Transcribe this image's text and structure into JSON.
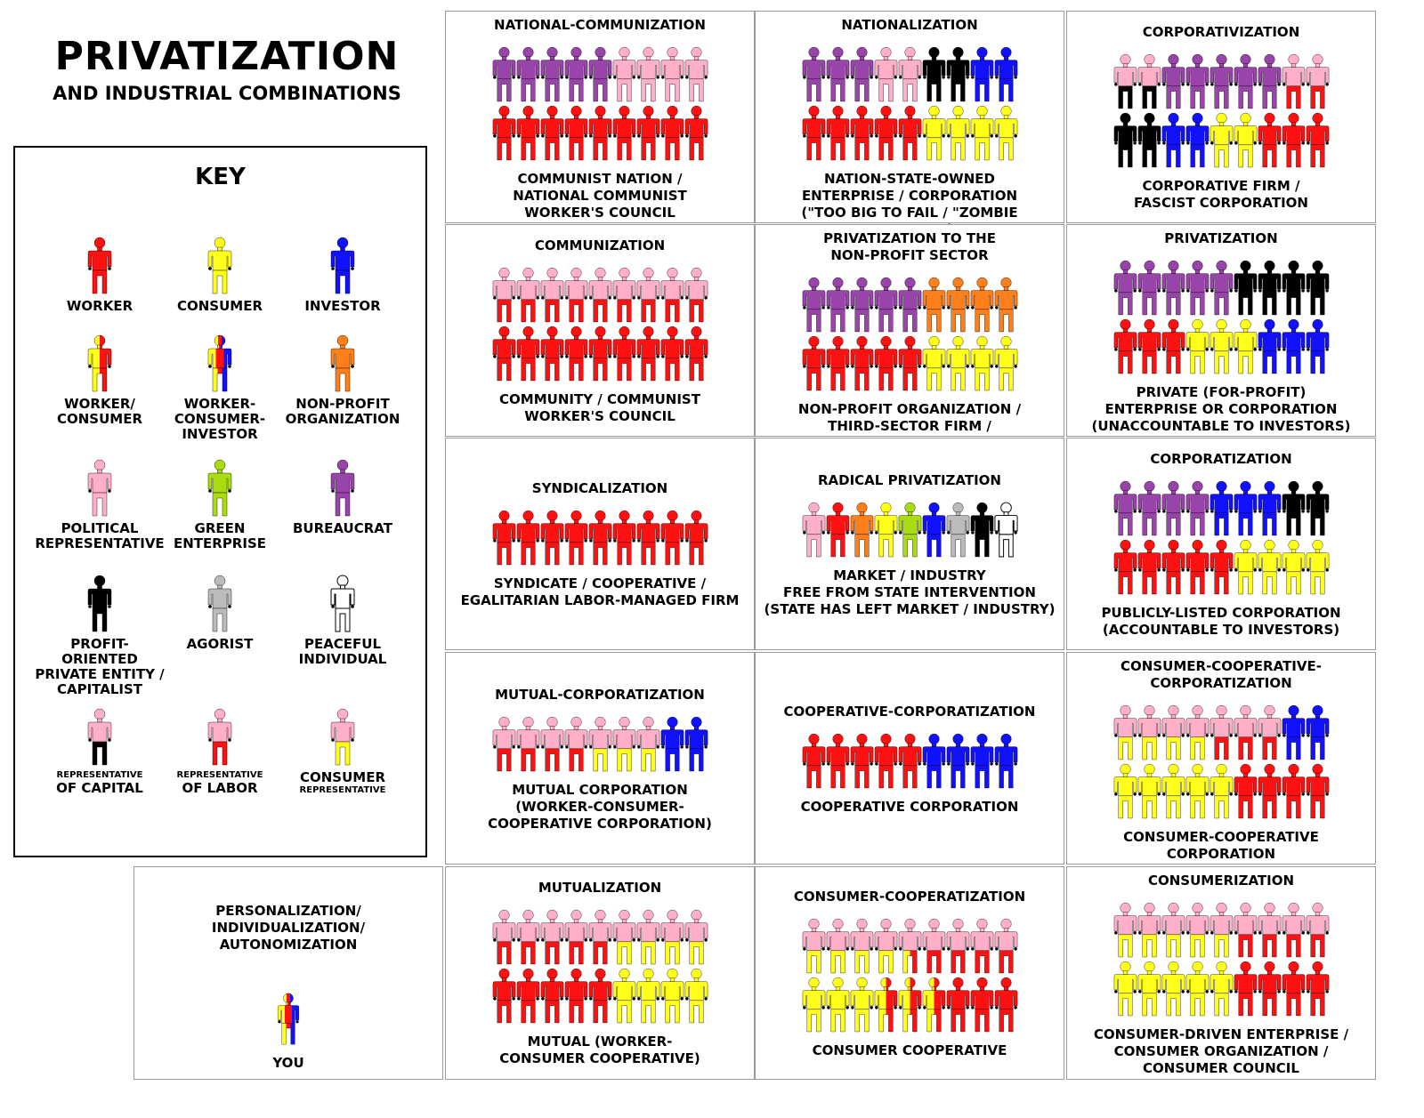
{
  "header": {
    "title": "PRIVATIZATION",
    "subtitle": "AND INDUSTRIAL COMBINATIONS"
  },
  "colors": {
    "worker": "#ff1111",
    "consumer": "#ffff1a",
    "investor": "#1111ff",
    "nonprofit": "#ff7f1a",
    "political": "#ffb0c8",
    "green": "#aadd11",
    "bureaucrat": "#9944aa",
    "capitalist": "#000000",
    "agorist": "#bbbbbb",
    "peaceful": "#ffffff"
  },
  "key": {
    "title": "KEY",
    "items": [
      {
        "name": "worker",
        "label": "WORKER",
        "icon": "worker"
      },
      {
        "name": "consumer",
        "label": "CONSUMER",
        "icon": "consumer"
      },
      {
        "name": "investor",
        "label": "INVESTOR",
        "icon": "investor"
      },
      {
        "name": "worker-consumer",
        "label": "WORKER/\nCONSUMER",
        "icon": "worker-consumer"
      },
      {
        "name": "worker-consumer-investor",
        "label": "WORKER-\nCONSUMER-\nINVESTOR",
        "icon": "worker-consumer-investor"
      },
      {
        "name": "non-profit-organization",
        "label": "NON-PROFIT\nORGANIZATION",
        "icon": "nonprofit"
      },
      {
        "name": "political-representative",
        "label": "POLITICAL\nREPRESENTATIVE",
        "icon": "political"
      },
      {
        "name": "green-enterprise",
        "label": "GREEN\nENTERPRISE",
        "icon": "green"
      },
      {
        "name": "bureaucrat",
        "label": "BUREAUCRAT",
        "icon": "bureaucrat"
      },
      {
        "name": "capitalist",
        "label": "PROFIT-ORIENTED\nPRIVATE ENTITY /\nCAPITALIST",
        "icon": "capitalist"
      },
      {
        "name": "agorist",
        "label": "AGORIST",
        "icon": "agorist"
      },
      {
        "name": "peaceful-individual",
        "label": "PEACEFUL\nINDIVIDUAL",
        "icon": "peaceful"
      },
      {
        "name": "representative-of-capital",
        "label_small": "REPRESENTATIVE",
        "label": "OF CAPITAL",
        "icon": "rep-capital"
      },
      {
        "name": "representative-of-labor",
        "label_small": "REPRESENTATIVE",
        "label": "OF LABOR",
        "icon": "rep-labor"
      },
      {
        "name": "consumer-representative",
        "label": "CONSUMER",
        "label_small": "REPRESENTATIVE",
        "icon": "rep-consumer"
      }
    ]
  },
  "panels": [
    {
      "name": "national-communization",
      "title": "NATIONAL-COMMUNIZATION",
      "caption": "COMMUNIST NATION /\nNATIONAL COMMUNIST\nWORKER'S COUNCIL",
      "rows": [
        [
          "bureaucrat",
          "bureaucrat",
          "bureaucrat",
          "bureaucrat",
          "bureaucrat",
          "political",
          "political",
          "political",
          "political"
        ],
        [
          "worker",
          "worker",
          "worker",
          "worker",
          "worker",
          "worker",
          "worker",
          "worker",
          "worker"
        ]
      ]
    },
    {
      "name": "nationalization",
      "title": "NATIONALIZATION",
      "caption": "NATION-STATE-OWNED\nENTERPRISE / CORPORATION\n(\"TOO BIG TO FAIL / \"ZOMBIE COMPANY\")",
      "rows": [
        [
          "bureaucrat",
          "bureaucrat",
          "bureaucrat",
          "political",
          "political",
          "capitalist",
          "capitalist",
          "investor",
          "investor"
        ],
        [
          "worker",
          "worker",
          "worker",
          "worker",
          "worker",
          "consumer",
          "consumer",
          "consumer",
          "consumer"
        ]
      ]
    },
    {
      "name": "corporativization",
      "title": "CORPORATIVIZATION",
      "caption": "CORPORATIVE FIRM /\nFASCIST CORPORATION",
      "rows": [
        [
          "rep-capital",
          "rep-capital",
          "bureaucrat",
          "bureaucrat",
          "bureaucrat",
          "bureaucrat",
          "bureaucrat",
          "rep-labor",
          "rep-labor"
        ],
        [
          "capitalist",
          "capitalist",
          "investor",
          "investor",
          "consumer",
          "consumer",
          "worker",
          "worker",
          "worker"
        ]
      ]
    },
    {
      "name": "communization",
      "title": "COMMUNIZATION",
      "caption": "COMMUNITY / COMMUNIST\nWORKER'S COUNCIL",
      "rows": [
        [
          "rep-labor",
          "rep-labor",
          "rep-labor",
          "rep-labor",
          "rep-labor",
          "rep-labor",
          "rep-labor",
          "rep-labor",
          "rep-labor"
        ],
        [
          "worker",
          "worker",
          "worker",
          "worker",
          "worker",
          "worker",
          "worker",
          "worker",
          "worker"
        ]
      ]
    },
    {
      "name": "privatization-non-profit",
      "title": "PRIVATIZATION TO THE\nNON-PROFIT SECTOR",
      "caption": "NON-PROFIT ORGANIZATION /\nTHIRD-SECTOR FIRM /\nVOLUNTARY COOPERATIVE",
      "rows": [
        [
          "bureaucrat",
          "bureaucrat",
          "bureaucrat",
          "bureaucrat",
          "bureaucrat",
          "nonprofit",
          "nonprofit",
          "nonprofit",
          "nonprofit"
        ],
        [
          "worker",
          "worker",
          "worker",
          "worker",
          "worker",
          "consumer",
          "consumer",
          "consumer",
          "consumer"
        ]
      ]
    },
    {
      "name": "privatization",
      "title": "PRIVATIZATION",
      "caption": "PRIVATE (FOR-PROFIT)\nENTERPRISE OR CORPORATION\n(UNACCOUNTABLE TO INVESTORS)",
      "rows": [
        [
          "bureaucrat",
          "bureaucrat",
          "bureaucrat",
          "bureaucrat",
          "bureaucrat",
          "capitalist",
          "capitalist",
          "capitalist",
          "capitalist"
        ],
        [
          "worker",
          "worker",
          "worker",
          "consumer",
          "consumer",
          "consumer",
          "investor",
          "investor",
          "investor"
        ]
      ]
    },
    {
      "name": "syndicalization",
      "title": "SYNDICALIZATION",
      "caption": "SYNDICATE / COOPERATIVE /\nEGALITARIAN LABOR-MANAGED FIRM",
      "rows": [
        [
          "worker",
          "worker",
          "worker",
          "worker",
          "worker",
          "worker",
          "worker",
          "worker",
          "worker"
        ]
      ]
    },
    {
      "name": "radical-privatization",
      "title": "RADICAL PRIVATIZATION",
      "caption": "MARKET / INDUSTRY\nFREE FROM STATE INTERVENTION\n(STATE HAS LEFT MARKET / INDUSTRY)",
      "rows": [
        [
          "political",
          "worker",
          "nonprofit",
          "consumer",
          "green",
          "investor",
          "agorist",
          "capitalist",
          "peaceful"
        ]
      ]
    },
    {
      "name": "corporatization",
      "title": "CORPORATIZATION",
      "caption": "PUBLICLY-LISTED CORPORATION\n(ACCOUNTABLE TO INVESTORS)",
      "rows": [
        [
          "bureaucrat",
          "bureaucrat",
          "bureaucrat",
          "bureaucrat",
          "investor",
          "investor",
          "investor",
          "capitalist",
          "capitalist"
        ],
        [
          "worker",
          "worker",
          "worker",
          "worker",
          "worker",
          "consumer",
          "consumer",
          "consumer",
          "consumer"
        ]
      ]
    },
    {
      "name": "mutual-corporatization",
      "title": "MUTUAL-CORPORATIZATION",
      "caption": "MUTUAL CORPORATION\n(WORKER-CONSUMER-\nCOOPERATIVE CORPORATION)",
      "rows": [
        [
          "rep-labor",
          "rep-labor",
          "rep-labor",
          "rep-labor",
          "rep-consumer",
          "rep-consumer",
          "rep-consumer",
          "investor",
          "investor"
        ]
      ]
    },
    {
      "name": "cooperative-corporatization",
      "title": "COOPERATIVE-CORPORATIZATION",
      "caption": "COOPERATIVE CORPORATION",
      "rows": [
        [
          "worker",
          "worker",
          "worker",
          "worker",
          "worker",
          "investor",
          "investor",
          "investor",
          "investor"
        ]
      ]
    },
    {
      "name": "consumer-cooperative-corporatization",
      "title": "CONSUMER-COOPERATIVE-\nCORPORATIZATION",
      "caption": "CONSUMER-COOPERATIVE\nCORPORATION",
      "rows": [
        [
          "rep-consumer",
          "rep-consumer",
          "rep-consumer",
          "rep-consumer",
          "rep-labor",
          "rep-labor",
          "rep-labor",
          "investor",
          "investor"
        ],
        [
          "consumer",
          "consumer",
          "consumer",
          "consumer",
          "consumer",
          "worker",
          "worker",
          "worker",
          "worker"
        ]
      ]
    },
    {
      "name": "personalization",
      "title": "PERSONALIZATION/\nINDIVIDUALIZATION/\nAUTONOMIZATION",
      "caption": "YOU",
      "rows": [
        [
          "worker-consumer-investor"
        ]
      ]
    },
    {
      "name": "mutualization",
      "title": "MUTUALIZATION",
      "caption": "MUTUAL (WORKER-\nCONSUMER COOPERATIVE)",
      "rows": [
        [
          "rep-labor",
          "rep-labor",
          "rep-labor",
          "rep-labor",
          "rep-labor",
          "rep-consumer",
          "rep-consumer",
          "rep-consumer",
          "rep-consumer"
        ],
        [
          "worker",
          "worker",
          "worker",
          "worker",
          "worker",
          "consumer",
          "consumer",
          "consumer",
          "consumer"
        ]
      ]
    },
    {
      "name": "consumer-cooperatization",
      "title": "CONSUMER-COOPERATIZATION",
      "caption": "CONSUMER COOPERATIVE",
      "rows": [
        [
          "rep-consumer",
          "rep-consumer",
          "rep-consumer",
          "rep-consumer",
          "rep-worker-consumer",
          "rep-labor",
          "rep-labor",
          "rep-labor",
          "rep-labor"
        ],
        [
          "consumer",
          "consumer",
          "consumer",
          "worker-consumer",
          "worker-consumer",
          "worker-consumer",
          "worker",
          "worker",
          "worker"
        ]
      ]
    },
    {
      "name": "consumerization",
      "title": "CONSUMERIZATION",
      "caption": "CONSUMER-DRIVEN ENTERPRISE /\nCONSUMER ORGANIZATION /\nCONSUMER COUNCIL",
      "rows": [
        [
          "rep-consumer",
          "rep-consumer",
          "rep-consumer",
          "rep-consumer",
          "rep-consumer",
          "rep-labor",
          "rep-labor",
          "rep-labor",
          "rep-labor"
        ],
        [
          "consumer",
          "consumer",
          "consumer",
          "consumer",
          "consumer",
          "worker",
          "worker",
          "worker",
          "worker"
        ]
      ]
    }
  ]
}
